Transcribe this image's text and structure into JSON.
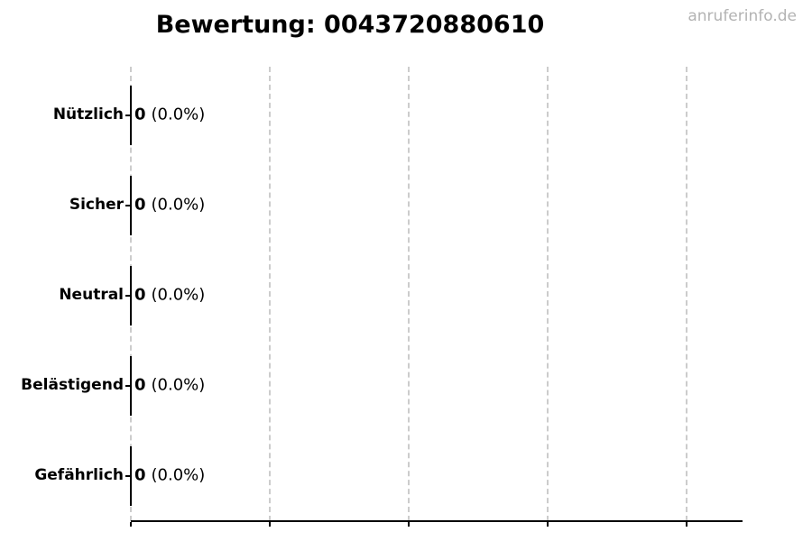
{
  "title": "Bewertung: 0043720880610",
  "watermark": "anruferinfo.de",
  "colors": {
    "background": "#ffffff",
    "text": "#000000",
    "grid": "#cccccc",
    "axis": "#000000",
    "bar_edge": "#000000",
    "watermark": "#b3b3b3"
  },
  "chart_data": {
    "type": "bar",
    "orientation": "horizontal",
    "title": "Bewertung: 0043720880610",
    "xlabel": "",
    "ylabel": "",
    "categories": [
      "Nützlich",
      "Sicher",
      "Neutral",
      "Belästigend",
      "Gefährlich"
    ],
    "values": [
      0,
      0,
      0,
      0,
      0
    ],
    "value_labels": [
      "0",
      "0",
      "0",
      "0",
      "0"
    ],
    "percent_labels": [
      "(0.0%)",
      "(0.0%)",
      "(0.0%)",
      "(0.0%)",
      "(0.0%)"
    ],
    "xlim": [
      0,
      4.4
    ],
    "x_tick_values": [
      0,
      1,
      2,
      3,
      4
    ],
    "x_tick_labels": [
      "",
      "",
      "",
      "",
      ""
    ],
    "grid": "vertical-dashed",
    "legend": "none"
  }
}
